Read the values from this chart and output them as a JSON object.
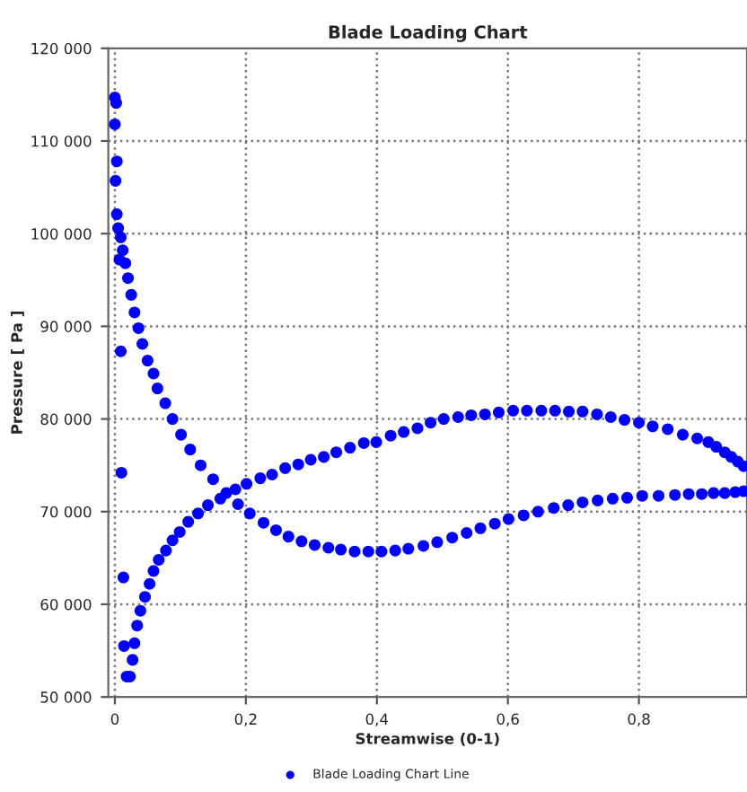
{
  "chart_data": {
    "type": "scatter",
    "title": "Blade Loading Chart",
    "xlabel": "Streamwise (0-1)",
    "ylabel": "Pressure [ Pa ]",
    "xlim": [
      -0.01,
      0.965
    ],
    "ylim": [
      50000,
      120000
    ],
    "xticks": [
      {
        "value": 0,
        "label": "0"
      },
      {
        "value": 0.2,
        "label": "0,2"
      },
      {
        "value": 0.4,
        "label": "0,4"
      },
      {
        "value": 0.6,
        "label": "0,6"
      },
      {
        "value": 0.8,
        "label": "0,8"
      }
    ],
    "yticks": [
      {
        "value": 50000,
        "label": "50 000"
      },
      {
        "value": 60000,
        "label": "60 000"
      },
      {
        "value": 70000,
        "label": "70 000"
      },
      {
        "value": 80000,
        "label": "80 000"
      },
      {
        "value": 90000,
        "label": "90 000"
      },
      {
        "value": 100000,
        "label": "100 000"
      },
      {
        "value": 110000,
        "label": "110 000"
      },
      {
        "value": 120000,
        "label": "120 000"
      }
    ],
    "grid": true,
    "legend": "bottom",
    "marker": "circle",
    "series": [
      {
        "name": "Blade Loading Chart Line",
        "color": "#0000ff",
        "x": [
          0,
          0.002,
          0,
          0.003,
          0.001,
          0.003,
          0.005,
          0.009,
          0.012,
          0.007,
          0.016,
          0.02,
          0.025,
          0.03,
          0.036,
          0.042,
          0.009,
          0.05,
          0.059,
          0.065,
          0.077,
          0.088,
          0.101,
          0.115,
          0.131,
          0.15,
          0.188,
          0.206,
          0.227,
          0.246,
          0.265,
          0.285,
          0.305,
          0.326,
          0.345,
          0.366,
          0.387,
          0.407,
          0.428,
          0.448,
          0.471,
          0.492,
          0.515,
          0.537,
          0.558,
          0.58,
          0.601,
          0.624,
          0.646,
          0.67,
          0.692,
          0.714,
          0.737,
          0.76,
          0.782,
          0.805,
          0.83,
          0.855,
          0.876,
          0.896,
          0.914,
          0.931,
          0.947,
          0.96,
          0.01,
          0.013,
          0.014,
          0.018,
          0.023,
          0.027,
          0.03,
          0.034,
          0.039,
          0.046,
          0.053,
          0.059,
          0.067,
          0.078,
          0.088,
          0.099,
          0.112,
          0.127,
          0.142,
          0.161,
          0.17,
          0.184,
          0.201,
          0.222,
          0.24,
          0.26,
          0.28,
          0.299,
          0.319,
          0.338,
          0.359,
          0.38,
          0.399,
          0.421,
          0.441,
          0.462,
          0.482,
          0.502,
          0.524,
          0.544,
          0.565,
          0.586,
          0.608,
          0.629,
          0.651,
          0.672,
          0.693,
          0.714,
          0.736,
          0.757,
          0.778,
          0.8,
          0.821,
          0.844,
          0.867,
          0.889,
          0.906,
          0.918,
          0.931,
          0.941,
          0.951,
          0.96
        ],
        "values": [
          114700,
          114100,
          111800,
          107800,
          105700,
          102100,
          100600,
          99600,
          98200,
          97200,
          96800,
          95200,
          93400,
          91500,
          89800,
          88100,
          87300,
          86300,
          84900,
          83300,
          81700,
          80000,
          78300,
          76700,
          75000,
          73500,
          70800,
          69800,
          68800,
          68000,
          67300,
          66800,
          66400,
          66100,
          65900,
          65700,
          65700,
          65700,
          65800,
          66000,
          66300,
          66700,
          67200,
          67700,
          68200,
          68700,
          69200,
          69600,
          70000,
          70400,
          70700,
          71000,
          71200,
          71400,
          71500,
          71700,
          71700,
          71800,
          71900,
          71900,
          72000,
          72000,
          72100,
          72200,
          74200,
          62900,
          55500,
          52200,
          52200,
          54000,
          55800,
          57700,
          59300,
          60800,
          62200,
          63600,
          64800,
          65800,
          66900,
          67800,
          68900,
          69800,
          70700,
          71400,
          72000,
          72400,
          73000,
          73600,
          74000,
          74700,
          75100,
          75600,
          75900,
          76400,
          76900,
          77400,
          77500,
          78200,
          78600,
          79000,
          79600,
          80000,
          80200,
          80400,
          80500,
          80700,
          80900,
          80900,
          80900,
          80900,
          80800,
          80800,
          80500,
          80200,
          79900,
          79600,
          79200,
          78900,
          78300,
          77900,
          77500,
          77000,
          76400,
          75900,
          75400,
          74900
        ]
      }
    ]
  }
}
